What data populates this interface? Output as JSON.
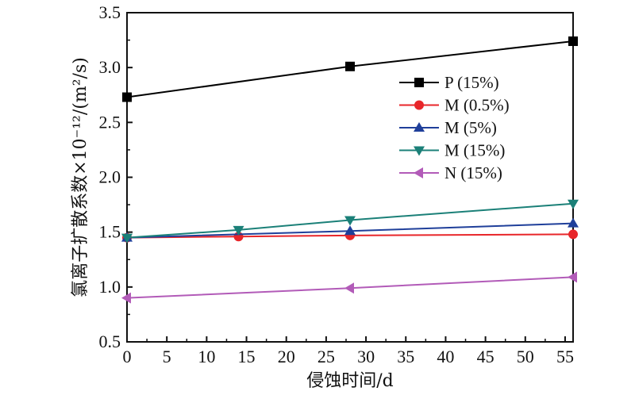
{
  "chart_data": {
    "type": "line",
    "xlabel": "侵蚀时间/d",
    "ylabel": "氯离子扩散系数×10⁻¹²/(m²/s)",
    "xlim": [
      0,
      56
    ],
    "ylim": [
      0.5,
      3.5
    ],
    "x_ticks": [
      0,
      5,
      10,
      15,
      20,
      25,
      30,
      35,
      40,
      45,
      50,
      55
    ],
    "y_ticks": [
      "0.5",
      "1.0",
      "1.5",
      "2.0",
      "2.5",
      "3.0",
      "3.5"
    ],
    "legend_position": "upper-right",
    "series": [
      {
        "name": "P (15%)",
        "color": "#000000",
        "marker": "square",
        "x": [
          0,
          28,
          56
        ],
        "y": [
          2.73,
          3.01,
          3.24
        ]
      },
      {
        "name": "M (0.5%)",
        "color": "#e8262a",
        "marker": "circle",
        "x": [
          0,
          14,
          28,
          56
        ],
        "y": [
          1.45,
          1.46,
          1.47,
          1.48
        ]
      },
      {
        "name": "M (5%)",
        "color": "#1f3f9a",
        "marker": "triangle-up",
        "x": [
          0,
          28,
          56
        ],
        "y": [
          1.45,
          1.51,
          1.58
        ]
      },
      {
        "name": "M (15%)",
        "color": "#1b8078",
        "marker": "triangle-down",
        "x": [
          0,
          14,
          28,
          56
        ],
        "y": [
          1.45,
          1.52,
          1.61,
          1.76
        ]
      },
      {
        "name": "N (15%)",
        "color": "#b25bb8",
        "marker": "triangle-left",
        "x": [
          0,
          28,
          56
        ],
        "y": [
          0.9,
          0.99,
          1.09
        ]
      }
    ]
  }
}
